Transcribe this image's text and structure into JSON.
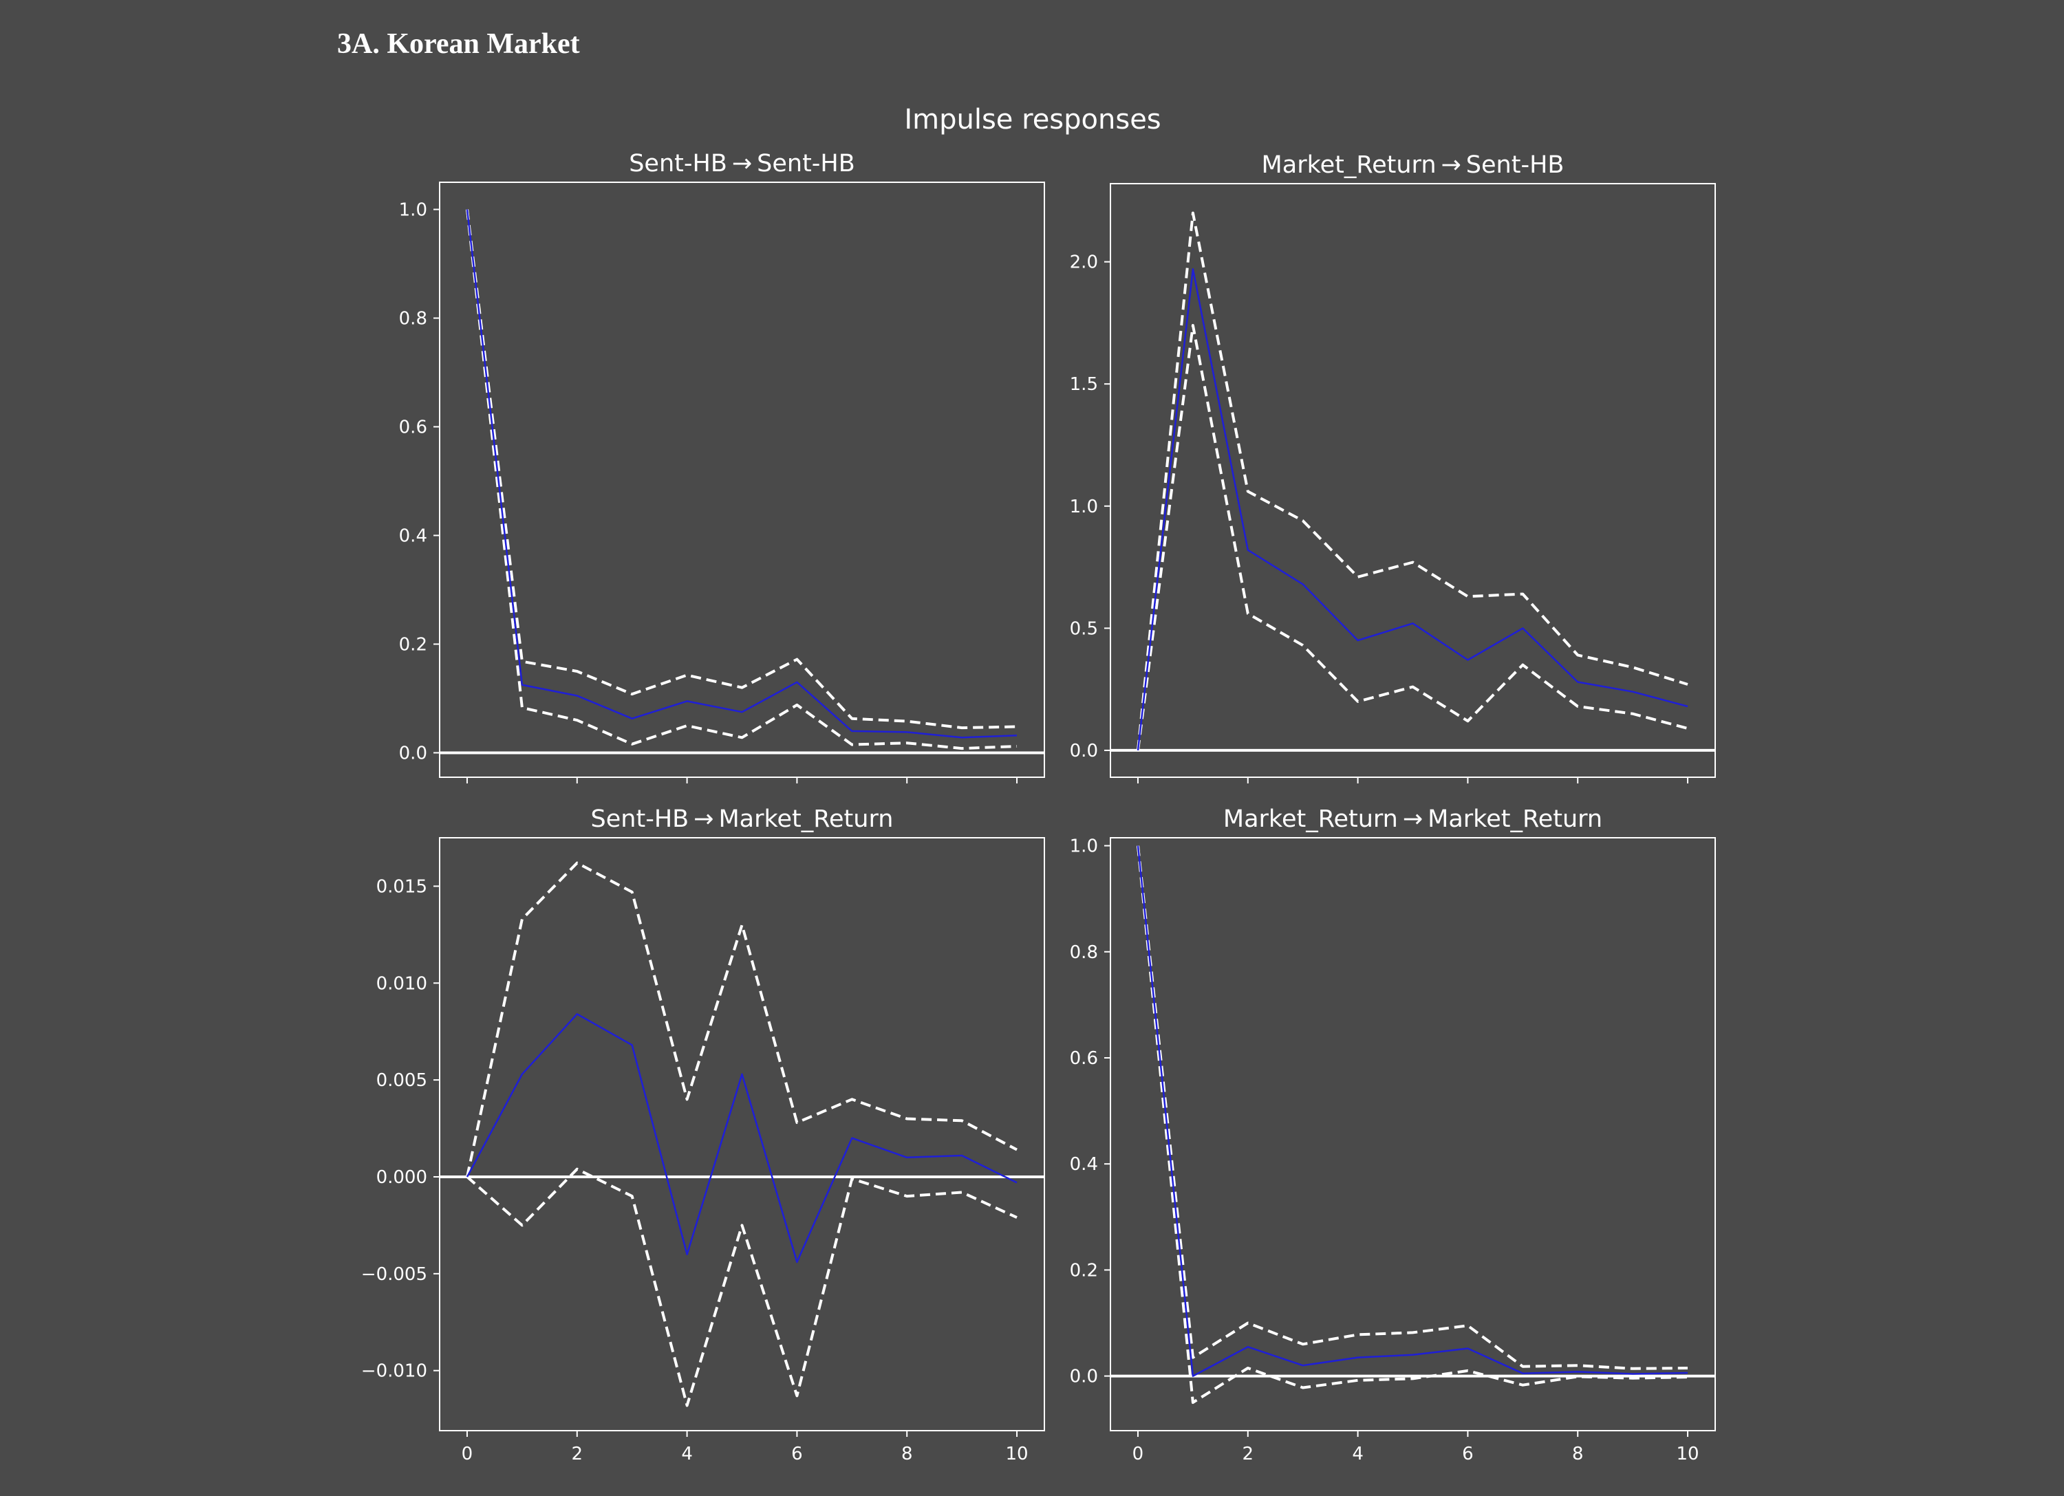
{
  "heading": "3A. Korean Market",
  "figure_title": "Impulse responses",
  "colors": {
    "background": "#4a4a4a",
    "axes": "#ffffff",
    "irf_line": "#1f1fd6",
    "ci_line": "#ffffff",
    "zero_line": "#ffffff"
  },
  "chart_data": [
    {
      "type": "line",
      "title": "Sent-HB → Sent-HB",
      "xlabel": "",
      "ylabel": "",
      "x": [
        0,
        1,
        2,
        3,
        4,
        5,
        6,
        7,
        8,
        9,
        10
      ],
      "xlim": [
        -0.5,
        10.5
      ],
      "ylim": [
        -0.045,
        1.05
      ],
      "xticks": [
        0,
        2,
        4,
        6,
        8,
        10
      ],
      "yticks": [
        0.0,
        0.2,
        0.4,
        0.6,
        0.8,
        1.0
      ],
      "ytick_labels": [
        "0.0",
        "0.2",
        "0.4",
        "0.6",
        "0.8",
        "1.0"
      ],
      "show_xtick_labels": false,
      "grid": false,
      "series": [
        {
          "role": "irf",
          "style": "solid",
          "values": [
            1.0,
            0.125,
            0.105,
            0.063,
            0.095,
            0.075,
            0.13,
            0.04,
            0.038,
            0.028,
            0.032
          ]
        },
        {
          "role": "upper",
          "style": "dashed",
          "values": [
            1.0,
            0.168,
            0.15,
            0.108,
            0.143,
            0.12,
            0.172,
            0.063,
            0.058,
            0.046,
            0.048
          ]
        },
        {
          "role": "lower",
          "style": "dashed",
          "values": [
            1.0,
            0.083,
            0.06,
            0.016,
            0.05,
            0.028,
            0.088,
            0.015,
            0.018,
            0.008,
            0.012
          ]
        }
      ]
    },
    {
      "type": "line",
      "title": "Market_Return → Sent-HB",
      "xlabel": "",
      "ylabel": "",
      "x": [
        0,
        1,
        2,
        3,
        4,
        5,
        6,
        7,
        8,
        9,
        10
      ],
      "xlim": [
        -0.5,
        10.5
      ],
      "ylim": [
        -0.11,
        2.32
      ],
      "xticks": [
        0,
        2,
        4,
        6,
        8,
        10
      ],
      "yticks": [
        0.0,
        0.5,
        1.0,
        1.5,
        2.0
      ],
      "ytick_labels": [
        "0.0",
        "0.5",
        "1.0",
        "1.5",
        "2.0"
      ],
      "show_xtick_labels": false,
      "grid": false,
      "series": [
        {
          "role": "irf",
          "style": "solid",
          "values": [
            0.0,
            1.97,
            0.82,
            0.68,
            0.45,
            0.52,
            0.37,
            0.5,
            0.28,
            0.24,
            0.18
          ]
        },
        {
          "role": "upper",
          "style": "dashed",
          "values": [
            0.0,
            2.2,
            1.06,
            0.94,
            0.71,
            0.77,
            0.63,
            0.64,
            0.39,
            0.34,
            0.27
          ]
        },
        {
          "role": "lower",
          "style": "dashed",
          "values": [
            0.0,
            1.74,
            0.56,
            0.43,
            0.2,
            0.26,
            0.12,
            0.35,
            0.18,
            0.15,
            0.09
          ]
        }
      ]
    },
    {
      "type": "line",
      "title": "Sent-HB → Market_Return",
      "xlabel": "",
      "ylabel": "",
      "x": [
        0,
        1,
        2,
        3,
        4,
        5,
        6,
        7,
        8,
        9,
        10
      ],
      "xlim": [
        -0.5,
        10.5
      ],
      "ylim": [
        -0.0131,
        0.0175
      ],
      "xticks": [
        0,
        2,
        4,
        6,
        8,
        10
      ],
      "yticks": [
        -0.01,
        -0.005,
        0.0,
        0.005,
        0.01,
        0.015
      ],
      "ytick_labels": [
        "−0.010",
        "−0.005",
        "0.000",
        "0.005",
        "0.010",
        "0.015"
      ],
      "show_xtick_labels": true,
      "xtick_labels": [
        "0",
        "2",
        "4",
        "6",
        "8",
        "10"
      ],
      "grid": false,
      "series": [
        {
          "role": "irf",
          "style": "solid",
          "values": [
            0.0,
            0.0053,
            0.0084,
            0.0068,
            -0.004,
            0.0053,
            -0.0044,
            0.002,
            0.001,
            0.0011,
            -0.0003
          ]
        },
        {
          "role": "upper",
          "style": "dashed",
          "values": [
            0.0,
            0.0133,
            0.0162,
            0.0147,
            0.004,
            0.013,
            0.0028,
            0.004,
            0.003,
            0.0029,
            0.0014
          ]
        },
        {
          "role": "lower",
          "style": "dashed",
          "values": [
            0.0,
            -0.0025,
            0.0004,
            -0.001,
            -0.0118,
            -0.0025,
            -0.0113,
            -0.0001,
            -0.001,
            -0.0008,
            -0.0021
          ]
        }
      ]
    },
    {
      "type": "line",
      "title": "Market_Return → Market_Return",
      "xlabel": "",
      "ylabel": "",
      "x": [
        0,
        1,
        2,
        3,
        4,
        5,
        6,
        7,
        8,
        9,
        10
      ],
      "xlim": [
        -0.5,
        10.5
      ],
      "ylim": [
        -0.103,
        1.015
      ],
      "xticks": [
        0,
        2,
        4,
        6,
        8,
        10
      ],
      "yticks": [
        0.0,
        0.2,
        0.4,
        0.6,
        0.8,
        1.0
      ],
      "ytick_labels": [
        "0.0",
        "0.2",
        "0.4",
        "0.6",
        "0.8",
        "1.0"
      ],
      "show_xtick_labels": true,
      "xtick_labels": [
        "0",
        "2",
        "4",
        "6",
        "8",
        "10"
      ],
      "grid": false,
      "series": [
        {
          "role": "irf",
          "style": "solid",
          "values": [
            1.0,
            0.0,
            0.055,
            0.02,
            0.035,
            0.04,
            0.052,
            0.005,
            0.008,
            0.004,
            0.006
          ]
        },
        {
          "role": "upper",
          "style": "dashed",
          "values": [
            1.0,
            0.035,
            0.1,
            0.06,
            0.078,
            0.082,
            0.095,
            0.018,
            0.02,
            0.014,
            0.015
          ]
        },
        {
          "role": "lower",
          "style": "dashed",
          "values": [
            1.0,
            -0.05,
            0.015,
            -0.022,
            -0.008,
            -0.005,
            0.01,
            -0.017,
            -0.001,
            -0.004,
            -0.002
          ]
        }
      ]
    }
  ]
}
